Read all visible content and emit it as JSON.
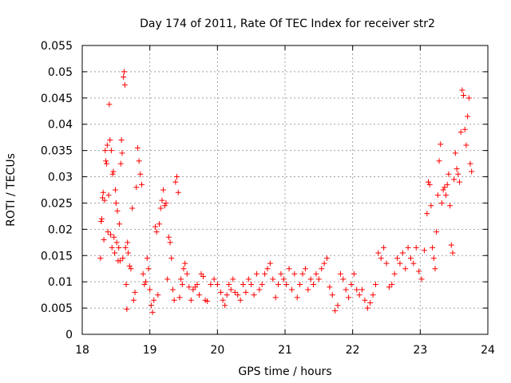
{
  "chart_data": {
    "type": "scatter",
    "title": "Day 174 of 2011, Rate Of TEC Index for receiver str2",
    "xlabel": "GPS time / hours",
    "ylabel": "ROTI / TECUs",
    "xlim": [
      18,
      24
    ],
    "ylim": [
      0,
      0.055
    ],
    "xticks": [
      "18",
      "19",
      "20",
      "21",
      "22",
      "23",
      "24"
    ],
    "yticks": [
      "0",
      "0.005",
      "0.01",
      "0.015",
      "0.02",
      "0.025",
      "0.03",
      "0.035",
      "0.04",
      "0.045",
      "0.05",
      "0.055"
    ],
    "grid": true,
    "marker": "+",
    "color": "#ff0000",
    "series": [
      {
        "name": "ROTI",
        "points": [
          [
            18.27,
            0.0145
          ],
          [
            18.28,
            0.0215
          ],
          [
            18.29,
            0.022
          ],
          [
            18.3,
            0.026
          ],
          [
            18.31,
            0.027
          ],
          [
            18.32,
            0.018
          ],
          [
            18.33,
            0.0255
          ],
          [
            18.34,
            0.035
          ],
          [
            18.35,
            0.033
          ],
          [
            18.36,
            0.0325
          ],
          [
            18.37,
            0.036
          ],
          [
            18.38,
            0.0195
          ],
          [
            18.39,
            0.0265
          ],
          [
            18.4,
            0.0438
          ],
          [
            18.41,
            0.037
          ],
          [
            18.42,
            0.019
          ],
          [
            18.43,
            0.035
          ],
          [
            18.44,
            0.0165
          ],
          [
            18.45,
            0.0305
          ],
          [
            18.46,
            0.031
          ],
          [
            18.47,
            0.0185
          ],
          [
            18.48,
            0.0155
          ],
          [
            18.49,
            0.0275
          ],
          [
            18.5,
            0.025
          ],
          [
            18.51,
            0.0175
          ],
          [
            18.52,
            0.0235
          ],
          [
            18.53,
            0.014
          ],
          [
            18.54,
            0.0165
          ],
          [
            18.55,
            0.021
          ],
          [
            18.56,
            0.014
          ],
          [
            18.57,
            0.0325
          ],
          [
            18.58,
            0.037
          ],
          [
            18.59,
            0.0345
          ],
          [
            18.6,
            0.0145
          ],
          [
            18.61,
            0.049
          ],
          [
            18.62,
            0.05
          ],
          [
            18.63,
            0.0475
          ],
          [
            18.64,
            0.0165
          ],
          [
            18.65,
            0.0095
          ],
          [
            18.66,
            0.0048
          ],
          [
            18.67,
            0.0175
          ],
          [
            18.68,
            0.0155
          ],
          [
            18.7,
            0.013
          ],
          [
            18.72,
            0.0125
          ],
          [
            18.74,
            0.024
          ],
          [
            18.76,
            0.0065
          ],
          [
            18.78,
            0.008
          ],
          [
            18.8,
            0.028
          ],
          [
            18.82,
            0.0355
          ],
          [
            18.84,
            0.033
          ],
          [
            18.86,
            0.0305
          ],
          [
            18.88,
            0.0285
          ],
          [
            18.9,
            0.0115
          ],
          [
            18.92,
            0.0095
          ],
          [
            18.94,
            0.01
          ],
          [
            18.96,
            0.0145
          ],
          [
            18.98,
            0.0125
          ],
          [
            19.0,
            0.0085
          ],
          [
            19.02,
            0.0055
          ],
          [
            19.04,
            0.0042
          ],
          [
            19.06,
            0.0065
          ],
          [
            19.08,
            0.0205
          ],
          [
            19.1,
            0.0195
          ],
          [
            19.12,
            0.0075
          ],
          [
            19.14,
            0.021
          ],
          [
            19.16,
            0.024
          ],
          [
            19.18,
            0.0255
          ],
          [
            19.2,
            0.0275
          ],
          [
            19.22,
            0.0245
          ],
          [
            19.24,
            0.025
          ],
          [
            19.26,
            0.0105
          ],
          [
            19.28,
            0.0185
          ],
          [
            19.3,
            0.0175
          ],
          [
            19.32,
            0.0145
          ],
          [
            19.34,
            0.0085
          ],
          [
            19.36,
            0.0065
          ],
          [
            19.38,
            0.029
          ],
          [
            19.4,
            0.03
          ],
          [
            19.42,
            0.027
          ],
          [
            19.44,
            0.007
          ],
          [
            19.46,
            0.0105
          ],
          [
            19.48,
            0.0095
          ],
          [
            19.5,
            0.0125
          ],
          [
            19.52,
            0.0135
          ],
          [
            19.55,
            0.0115
          ],
          [
            19.58,
            0.009
          ],
          [
            19.61,
            0.0065
          ],
          [
            19.64,
            0.0085
          ],
          [
            19.67,
            0.009
          ],
          [
            19.7,
            0.0095
          ],
          [
            19.73,
            0.0075
          ],
          [
            19.76,
            0.0115
          ],
          [
            19.79,
            0.011
          ],
          [
            19.82,
            0.0065
          ],
          [
            19.85,
            0.0063
          ],
          [
            19.9,
            0.0095
          ],
          [
            19.95,
            0.0105
          ],
          [
            20.0,
            0.0095
          ],
          [
            20.05,
            0.008
          ],
          [
            20.08,
            0.0065
          ],
          [
            20.11,
            0.0055
          ],
          [
            20.14,
            0.0075
          ],
          [
            20.17,
            0.0095
          ],
          [
            20.2,
            0.0085
          ],
          [
            20.23,
            0.0105
          ],
          [
            20.26,
            0.008
          ],
          [
            20.3,
            0.0075
          ],
          [
            20.34,
            0.0065
          ],
          [
            20.38,
            0.0095
          ],
          [
            20.42,
            0.008
          ],
          [
            20.46,
            0.0105
          ],
          [
            20.5,
            0.0095
          ],
          [
            20.54,
            0.0075
          ],
          [
            20.58,
            0.0115
          ],
          [
            20.62,
            0.0085
          ],
          [
            20.66,
            0.0095
          ],
          [
            20.7,
            0.0115
          ],
          [
            20.74,
            0.0125
          ],
          [
            20.78,
            0.0135
          ],
          [
            20.82,
            0.0105
          ],
          [
            20.86,
            0.007
          ],
          [
            20.9,
            0.0095
          ],
          [
            20.94,
            0.0115
          ],
          [
            20.98,
            0.0105
          ],
          [
            21.02,
            0.0095
          ],
          [
            21.06,
            0.0125
          ],
          [
            21.1,
            0.0085
          ],
          [
            21.14,
            0.0115
          ],
          [
            21.18,
            0.007
          ],
          [
            21.22,
            0.0095
          ],
          [
            21.26,
            0.0115
          ],
          [
            21.3,
            0.0125
          ],
          [
            21.34,
            0.0085
          ],
          [
            21.38,
            0.0105
          ],
          [
            21.42,
            0.0095
          ],
          [
            21.46,
            0.0115
          ],
          [
            21.5,
            0.0105
          ],
          [
            21.54,
            0.0125
          ],
          [
            21.58,
            0.0135
          ],
          [
            21.62,
            0.0145
          ],
          [
            21.66,
            0.009
          ],
          [
            21.7,
            0.0075
          ],
          [
            21.74,
            0.0045
          ],
          [
            21.78,
            0.0055
          ],
          [
            21.82,
            0.0115
          ],
          [
            21.86,
            0.0105
          ],
          [
            21.9,
            0.0085
          ],
          [
            21.94,
            0.007
          ],
          [
            21.98,
            0.0095
          ],
          [
            22.02,
            0.0115
          ],
          [
            22.06,
            0.0085
          ],
          [
            22.1,
            0.0075
          ],
          [
            22.14,
            0.0085
          ],
          [
            22.18,
            0.0065
          ],
          [
            22.22,
            0.005
          ],
          [
            22.26,
            0.006
          ],
          [
            22.3,
            0.0075
          ],
          [
            22.34,
            0.0095
          ],
          [
            22.38,
            0.0155
          ],
          [
            22.42,
            0.0145
          ],
          [
            22.46,
            0.0165
          ],
          [
            22.5,
            0.0135
          ],
          [
            22.54,
            0.009
          ],
          [
            22.58,
            0.0095
          ],
          [
            22.62,
            0.0115
          ],
          [
            22.66,
            0.0145
          ],
          [
            22.7,
            0.0135
          ],
          [
            22.74,
            0.0155
          ],
          [
            22.78,
            0.0125
          ],
          [
            22.82,
            0.0165
          ],
          [
            22.86,
            0.0145
          ],
          [
            22.9,
            0.0135
          ],
          [
            22.94,
            0.0165
          ],
          [
            22.98,
            0.012
          ],
          [
            23.02,
            0.0105
          ],
          [
            23.06,
            0.016
          ],
          [
            23.1,
            0.023
          ],
          [
            23.12,
            0.029
          ],
          [
            23.14,
            0.0285
          ],
          [
            23.16,
            0.0245
          ],
          [
            23.18,
            0.0165
          ],
          [
            23.2,
            0.0145
          ],
          [
            23.22,
            0.0125
          ],
          [
            23.24,
            0.0195
          ],
          [
            23.26,
            0.0265
          ],
          [
            23.28,
            0.033
          ],
          [
            23.3,
            0.0362
          ],
          [
            23.32,
            0.025
          ],
          [
            23.34,
            0.0275
          ],
          [
            23.36,
            0.028
          ],
          [
            23.38,
            0.0265
          ],
          [
            23.4,
            0.0285
          ],
          [
            23.42,
            0.0305
          ],
          [
            23.44,
            0.0245
          ],
          [
            23.46,
            0.017
          ],
          [
            23.48,
            0.0155
          ],
          [
            23.5,
            0.0295
          ],
          [
            23.52,
            0.0345
          ],
          [
            23.54,
            0.0315
          ],
          [
            23.56,
            0.0305
          ],
          [
            23.58,
            0.029
          ],
          [
            23.6,
            0.0385
          ],
          [
            23.62,
            0.0465
          ],
          [
            23.64,
            0.0455
          ],
          [
            23.66,
            0.039
          ],
          [
            23.68,
            0.036
          ],
          [
            23.7,
            0.0415
          ],
          [
            23.72,
            0.045
          ],
          [
            23.74,
            0.0325
          ],
          [
            23.76,
            0.031
          ]
        ]
      }
    ]
  }
}
